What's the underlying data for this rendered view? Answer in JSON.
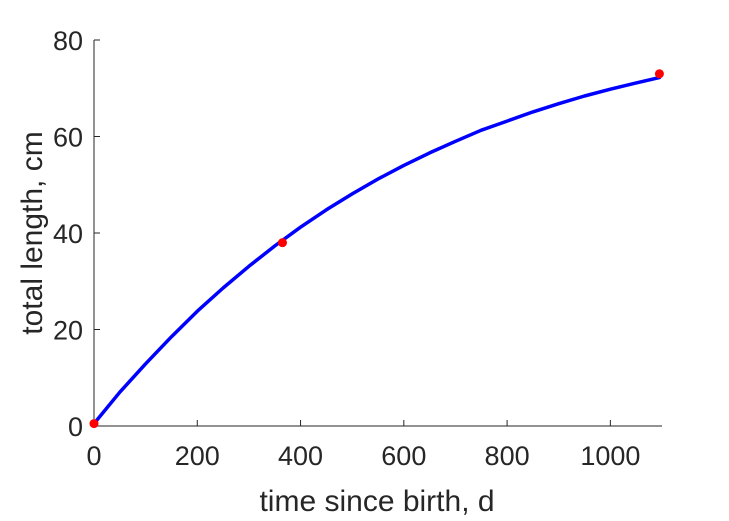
{
  "chart_data": {
    "type": "line",
    "title": "",
    "xlabel": "time since birth, d",
    "ylabel": "total length, cm",
    "xlim": [
      0,
      1100
    ],
    "ylim": [
      0,
      80
    ],
    "xticks": [
      0,
      200,
      400,
      600,
      800,
      1000
    ],
    "yticks": [
      0,
      20,
      40,
      60,
      80
    ],
    "xtick_labels": [
      "0",
      "200",
      "400",
      "600",
      "800",
      "1000"
    ],
    "ytick_labels": [
      "0",
      "20",
      "40",
      "60",
      "80"
    ],
    "grid": false,
    "series": [
      {
        "kind": "line",
        "color": "#0000ff",
        "x": [
          0,
          50,
          100,
          150,
          200,
          250,
          300,
          350,
          400,
          450,
          500,
          550,
          600,
          650,
          700,
          750,
          800,
          850,
          900,
          950,
          1000,
          1050,
          1095
        ],
        "y": [
          0.5,
          7.0,
          12.9,
          18.5,
          23.8,
          28.6,
          33.1,
          37.3,
          41.2,
          44.8,
          48.1,
          51.2,
          54.0,
          56.6,
          59.0,
          61.3,
          63.2,
          65.1,
          66.8,
          68.4,
          69.8,
          71.1,
          72.2
        ]
      },
      {
        "kind": "scatter",
        "color": "#ff0000",
        "x": [
          0,
          365,
          1095
        ],
        "y": [
          0.5,
          38.0,
          73.0
        ]
      }
    ]
  }
}
